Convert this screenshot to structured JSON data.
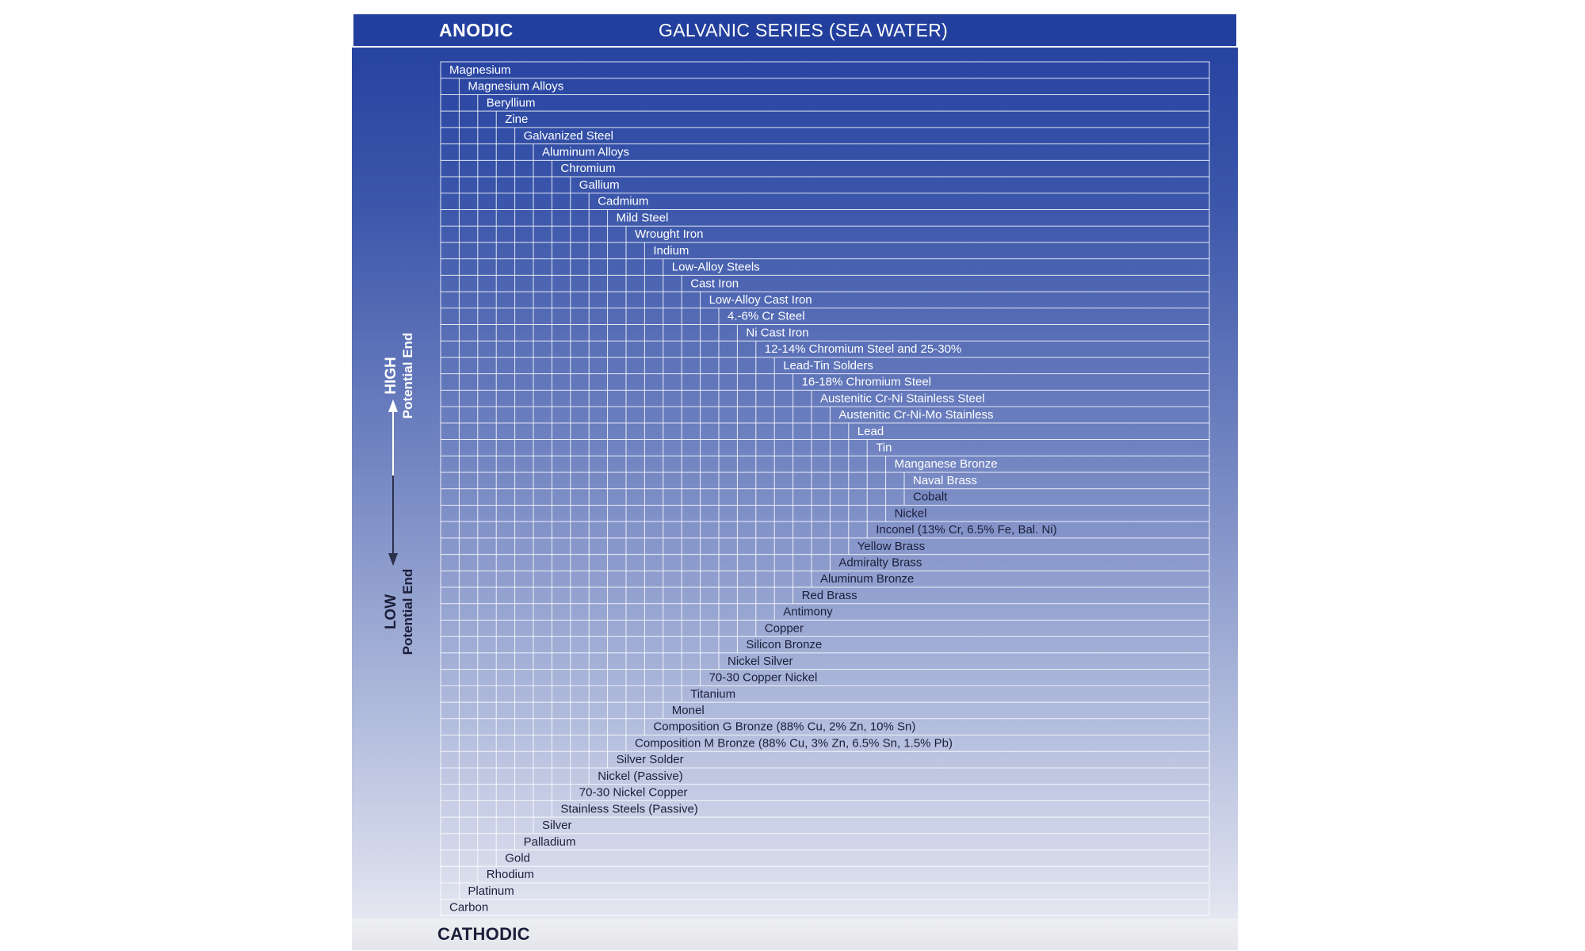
{
  "header": {
    "anodic_label": "ANODIC",
    "title": "GALVANIC SERIES (SEA WATER)"
  },
  "footer": {
    "cathodic_label": "CATHODIC"
  },
  "axis": {
    "high_main": "HIGH",
    "high_sub": "Potential End",
    "low_main": "LOW",
    "low_sub": "Potential End"
  },
  "colors": {
    "header_bar": "#223f9e",
    "text_light": "#ffffff",
    "text_dark": "#1b1f3a",
    "grid_line": "#ffffff"
  },
  "materials": [
    "Magnesium",
    "Magnesium Alloys",
    "Beryllium",
    "Zine",
    "Galvanized Steel",
    "Aluminum Alloys",
    "Chromium",
    "Gallium",
    "Cadmium",
    "Mild Steel",
    "Wrought Iron",
    "Indium",
    "Low-Alloy Steels",
    "Cast Iron",
    "Low-Alloy Cast Iron",
    "4.-6% Cr Steel",
    "Ni Cast Iron",
    "12-14% Chromium Steel and 25-30%",
    "Lead-Tin Solders",
    "16-18% Chromium Steel",
    "Austenitic Cr-Ni Stainless Steel",
    "Austenitic Cr-Ni-Mo Stainless",
    "Lead",
    "Tin",
    "Manganese Bronze",
    "Naval Brass",
    "Cobalt",
    "Nickel",
    "Inconel (13% Cr, 6.5% Fe, Bal. Ni)",
    "Yellow Brass",
    "Admiralty Brass",
    "Aluminum Bronze",
    "Red Brass",
    "Antimony",
    "Copper",
    "Silicon Bronze",
    "Nickel Silver",
    "70-30 Copper Nickel",
    "Titanium",
    "Monel",
    "Composition G Bronze (88% Cu, 2% Zn, 10% Sn)",
    "Composition M Bronze (88% Cu, 3% Zn, 6.5% Sn, 1.5% Pb)",
    "Silver Solder",
    "Nickel (Passive)",
    "70-30 Nickel Copper",
    "Stainless Steels (Passive)",
    "Silver",
    "Palladium",
    "Gold",
    "Rhodium",
    "Platinum",
    "Carbon"
  ]
}
